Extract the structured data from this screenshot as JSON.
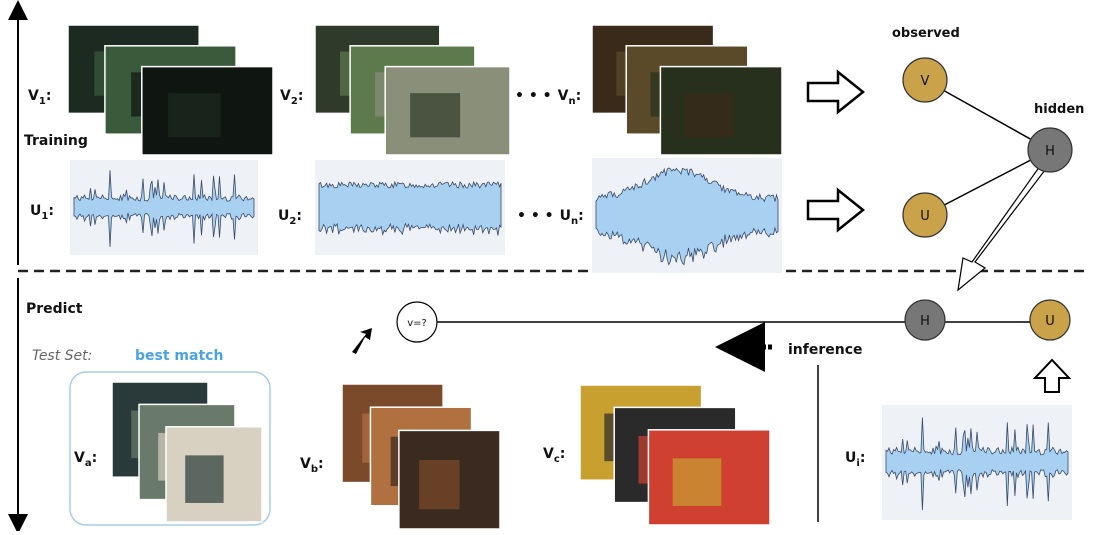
{
  "training": {
    "title": "Training",
    "video_labels": [
      {
        "base": "V",
        "sub": "1",
        "colon": ":"
      },
      {
        "base": "V",
        "sub": "2",
        "colon": ":"
      },
      {
        "prefix": "• • •",
        "base": "V",
        "sub": "n",
        "colon": ":"
      }
    ],
    "audio_labels": [
      {
        "base": "U",
        "sub": "1",
        "colon": ":"
      },
      {
        "base": "U",
        "sub": "2",
        "colon": ":"
      },
      {
        "prefix": "• • •",
        "base": "U",
        "sub": "n",
        "colon": ":"
      }
    ]
  },
  "model": {
    "observed": "observed",
    "hidden": "hidden",
    "nodes": [
      "V",
      "H",
      "U"
    ]
  },
  "predict": {
    "title": "Predict",
    "test_set": "Test Set:",
    "best_match": "best match",
    "query": "v=?",
    "nodes": [
      "H",
      "U"
    ],
    "inference": "inference",
    "candidates": [
      {
        "base": "V",
        "sub": "a",
        "colon": ":"
      },
      {
        "base": "V",
        "sub": "b",
        "colon": ":"
      },
      {
        "base": "V",
        "sub": "c",
        "colon": ":"
      }
    ],
    "input": {
      "base": "U",
      "sub": "i",
      "colon": ":"
    }
  }
}
